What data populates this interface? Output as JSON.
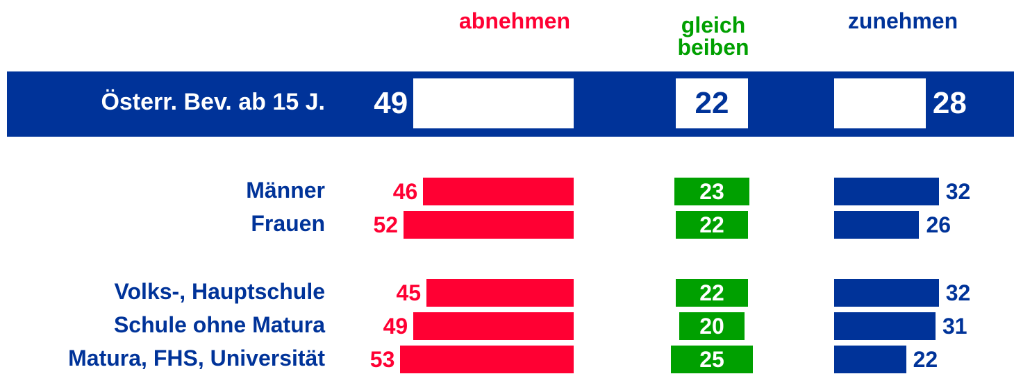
{
  "chart_data": {
    "type": "bar",
    "orientation": "horizontal",
    "categories": [
      "Österr. Bev. ab 15 J.",
      "Männer",
      "Frauen",
      "Volks-, Hauptschule",
      "Schule ohne Matura",
      "Matura, FHS, Universität"
    ],
    "series": [
      {
        "name": "abnehmen",
        "color": "#ff0033",
        "values": [
          49,
          46,
          52,
          45,
          49,
          53
        ]
      },
      {
        "name": "gleich beiben",
        "color": "#00a000",
        "values": [
          22,
          23,
          22,
          22,
          20,
          25
        ]
      },
      {
        "name": "zunehmen",
        "color": "#003399",
        "values": [
          28,
          32,
          26,
          32,
          31,
          22
        ]
      }
    ]
  }
}
